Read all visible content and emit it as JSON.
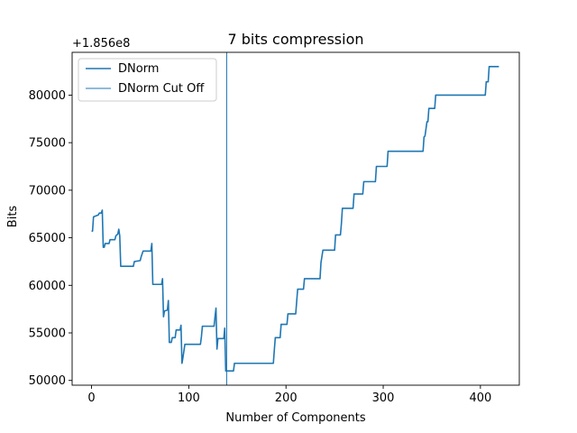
{
  "chart_data": {
    "type": "line",
    "title": "7 bits compression",
    "xlabel": "Number of Components",
    "ylabel": "Bits",
    "y_offset_text": "+1.856e8",
    "xlim": [
      -20,
      440
    ],
    "ylim": [
      49500,
      84500
    ],
    "xticks": [
      0,
      100,
      200,
      300,
      400
    ],
    "yticks": [
      50000,
      55000,
      60000,
      65000,
      70000,
      75000,
      80000
    ],
    "xtick_labels": [
      "0",
      "100",
      "200",
      "300",
      "400"
    ],
    "ytick_labels": [
      "50000",
      "55000",
      "60000",
      "65000",
      "70000",
      "75000",
      "80000"
    ],
    "legend": {
      "position": "upper-left",
      "entries": [
        "DNorm",
        "DNorm Cut Off"
      ]
    },
    "series": [
      {
        "name": "DNorm",
        "color": "#1f77b4",
        "points": [
          [
            0,
            65700
          ],
          [
            1,
            65700
          ],
          [
            2,
            67200
          ],
          [
            7,
            67400
          ],
          [
            8,
            67600
          ],
          [
            10,
            67600
          ],
          [
            11,
            67900
          ],
          [
            12,
            64000
          ],
          [
            13,
            64000
          ],
          [
            14,
            64400
          ],
          [
            18,
            64400
          ],
          [
            19,
            64800
          ],
          [
            24,
            64800
          ],
          [
            25,
            65200
          ],
          [
            27,
            65400
          ],
          [
            28,
            65900
          ],
          [
            29,
            65200
          ],
          [
            30,
            62000
          ],
          [
            31,
            62000
          ],
          [
            43,
            62000
          ],
          [
            44,
            62500
          ],
          [
            50,
            62600
          ],
          [
            51,
            63000
          ],
          [
            53,
            63600
          ],
          [
            61,
            63600
          ],
          [
            62,
            64400
          ],
          [
            63,
            60100
          ],
          [
            72,
            60100
          ],
          [
            73,
            60700
          ],
          [
            74,
            56700
          ],
          [
            75,
            57300
          ],
          [
            78,
            57400
          ],
          [
            79,
            58400
          ],
          [
            80,
            54000
          ],
          [
            82,
            54000
          ],
          [
            83,
            54500
          ],
          [
            86,
            54500
          ],
          [
            87,
            55300
          ],
          [
            91,
            55300
          ],
          [
            92,
            55800
          ],
          [
            93,
            51800
          ],
          [
            94,
            52400
          ],
          [
            95,
            53100
          ],
          [
            96,
            53800
          ],
          [
            112,
            53800
          ],
          [
            113,
            54600
          ],
          [
            114,
            55700
          ],
          [
            126,
            55700
          ],
          [
            127,
            56700
          ],
          [
            128,
            57600
          ],
          [
            129,
            53300
          ],
          [
            130,
            54400
          ],
          [
            136,
            54400
          ],
          [
            137,
            55500
          ],
          [
            138,
            51000
          ],
          [
            146,
            51000
          ],
          [
            147,
            51800
          ],
          [
            187,
            51800
          ],
          [
            188,
            53200
          ],
          [
            189,
            54500
          ],
          [
            194,
            54500
          ],
          [
            195,
            55900
          ],
          [
            201,
            55900
          ],
          [
            202,
            57000
          ],
          [
            210,
            57000
          ],
          [
            211,
            58300
          ],
          [
            212,
            59600
          ],
          [
            218,
            59600
          ],
          [
            219,
            60700
          ],
          [
            235,
            60700
          ],
          [
            236,
            62400
          ],
          [
            238,
            63700
          ],
          [
            250,
            63700
          ],
          [
            251,
            65300
          ],
          [
            256,
            65300
          ],
          [
            257,
            66500
          ],
          [
            258,
            68100
          ],
          [
            269,
            68100
          ],
          [
            270,
            69600
          ],
          [
            279,
            69600
          ],
          [
            280,
            70900
          ],
          [
            292,
            70900
          ],
          [
            293,
            72500
          ],
          [
            304,
            72500
          ],
          [
            305,
            74100
          ],
          [
            341,
            74100
          ],
          [
            342,
            75600
          ],
          [
            343,
            75700
          ],
          [
            345,
            77200
          ],
          [
            346,
            77200
          ],
          [
            347,
            78600
          ],
          [
            353,
            78600
          ],
          [
            354,
            80000
          ],
          [
            405,
            80000
          ],
          [
            406,
            81400
          ],
          [
            408,
            81400
          ],
          [
            409,
            83000
          ],
          [
            419,
            83000
          ]
        ]
      }
    ],
    "cutoff": {
      "name": "DNorm Cut Off",
      "x": 139,
      "color": "#1f77b4"
    }
  }
}
